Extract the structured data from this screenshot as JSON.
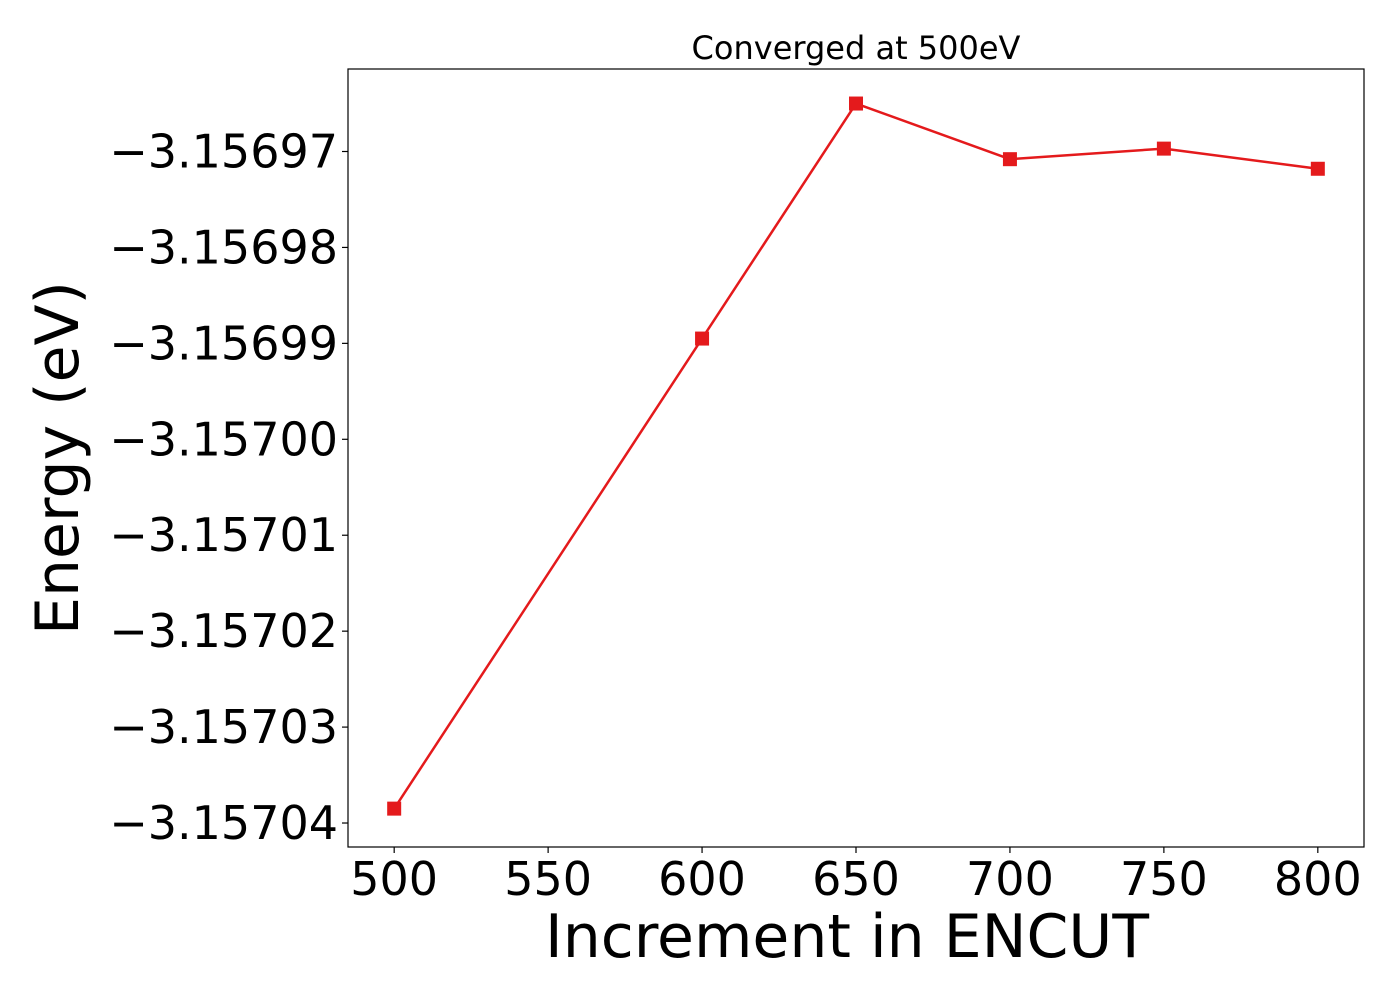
{
  "chart_data": {
    "type": "line",
    "title": "Converged at 500eV",
    "xlabel": "Increment in ENCUT",
    "ylabel": "Energy (eV)",
    "x": [
      500,
      600,
      650,
      700,
      750,
      800
    ],
    "series": [
      {
        "values": [
          -3.1570385,
          -3.1569895,
          -3.156965,
          -3.1569708,
          -3.1569697,
          -3.1569718
        ],
        "color": "#e41a1c",
        "marker": "square"
      }
    ],
    "xlim": [
      485,
      815
    ],
    "ylim": [
      -3.1570425,
      -3.1569614
    ],
    "xticks": [
      500,
      550,
      600,
      650,
      700,
      750,
      800
    ],
    "xtick_labels": [
      "500",
      "550",
      "600",
      "650",
      "700",
      "750",
      "800"
    ],
    "yticks": [
      -3.15704,
      -3.15703,
      -3.15702,
      -3.15701,
      -3.157,
      -3.15699,
      -3.15698,
      -3.15697
    ],
    "ytick_labels": [
      "−3.15704",
      "−3.15703",
      "−3.15702",
      "−3.15701",
      "−3.15700",
      "−3.15699",
      "−3.15698",
      "−3.15697"
    ],
    "grid": false,
    "legend": "none"
  }
}
